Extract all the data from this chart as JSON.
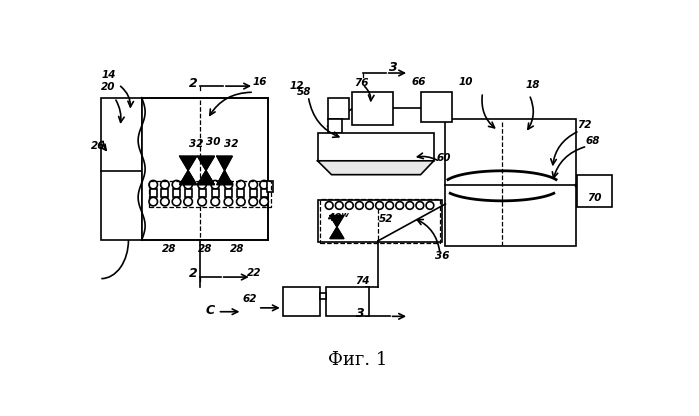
{
  "title": "Фиг. 1",
  "bg": "#ffffff",
  "lc": "#000000",
  "lw": 1.2,
  "fig_w": 6.99,
  "fig_h": 4.16,
  "dpi": 100
}
